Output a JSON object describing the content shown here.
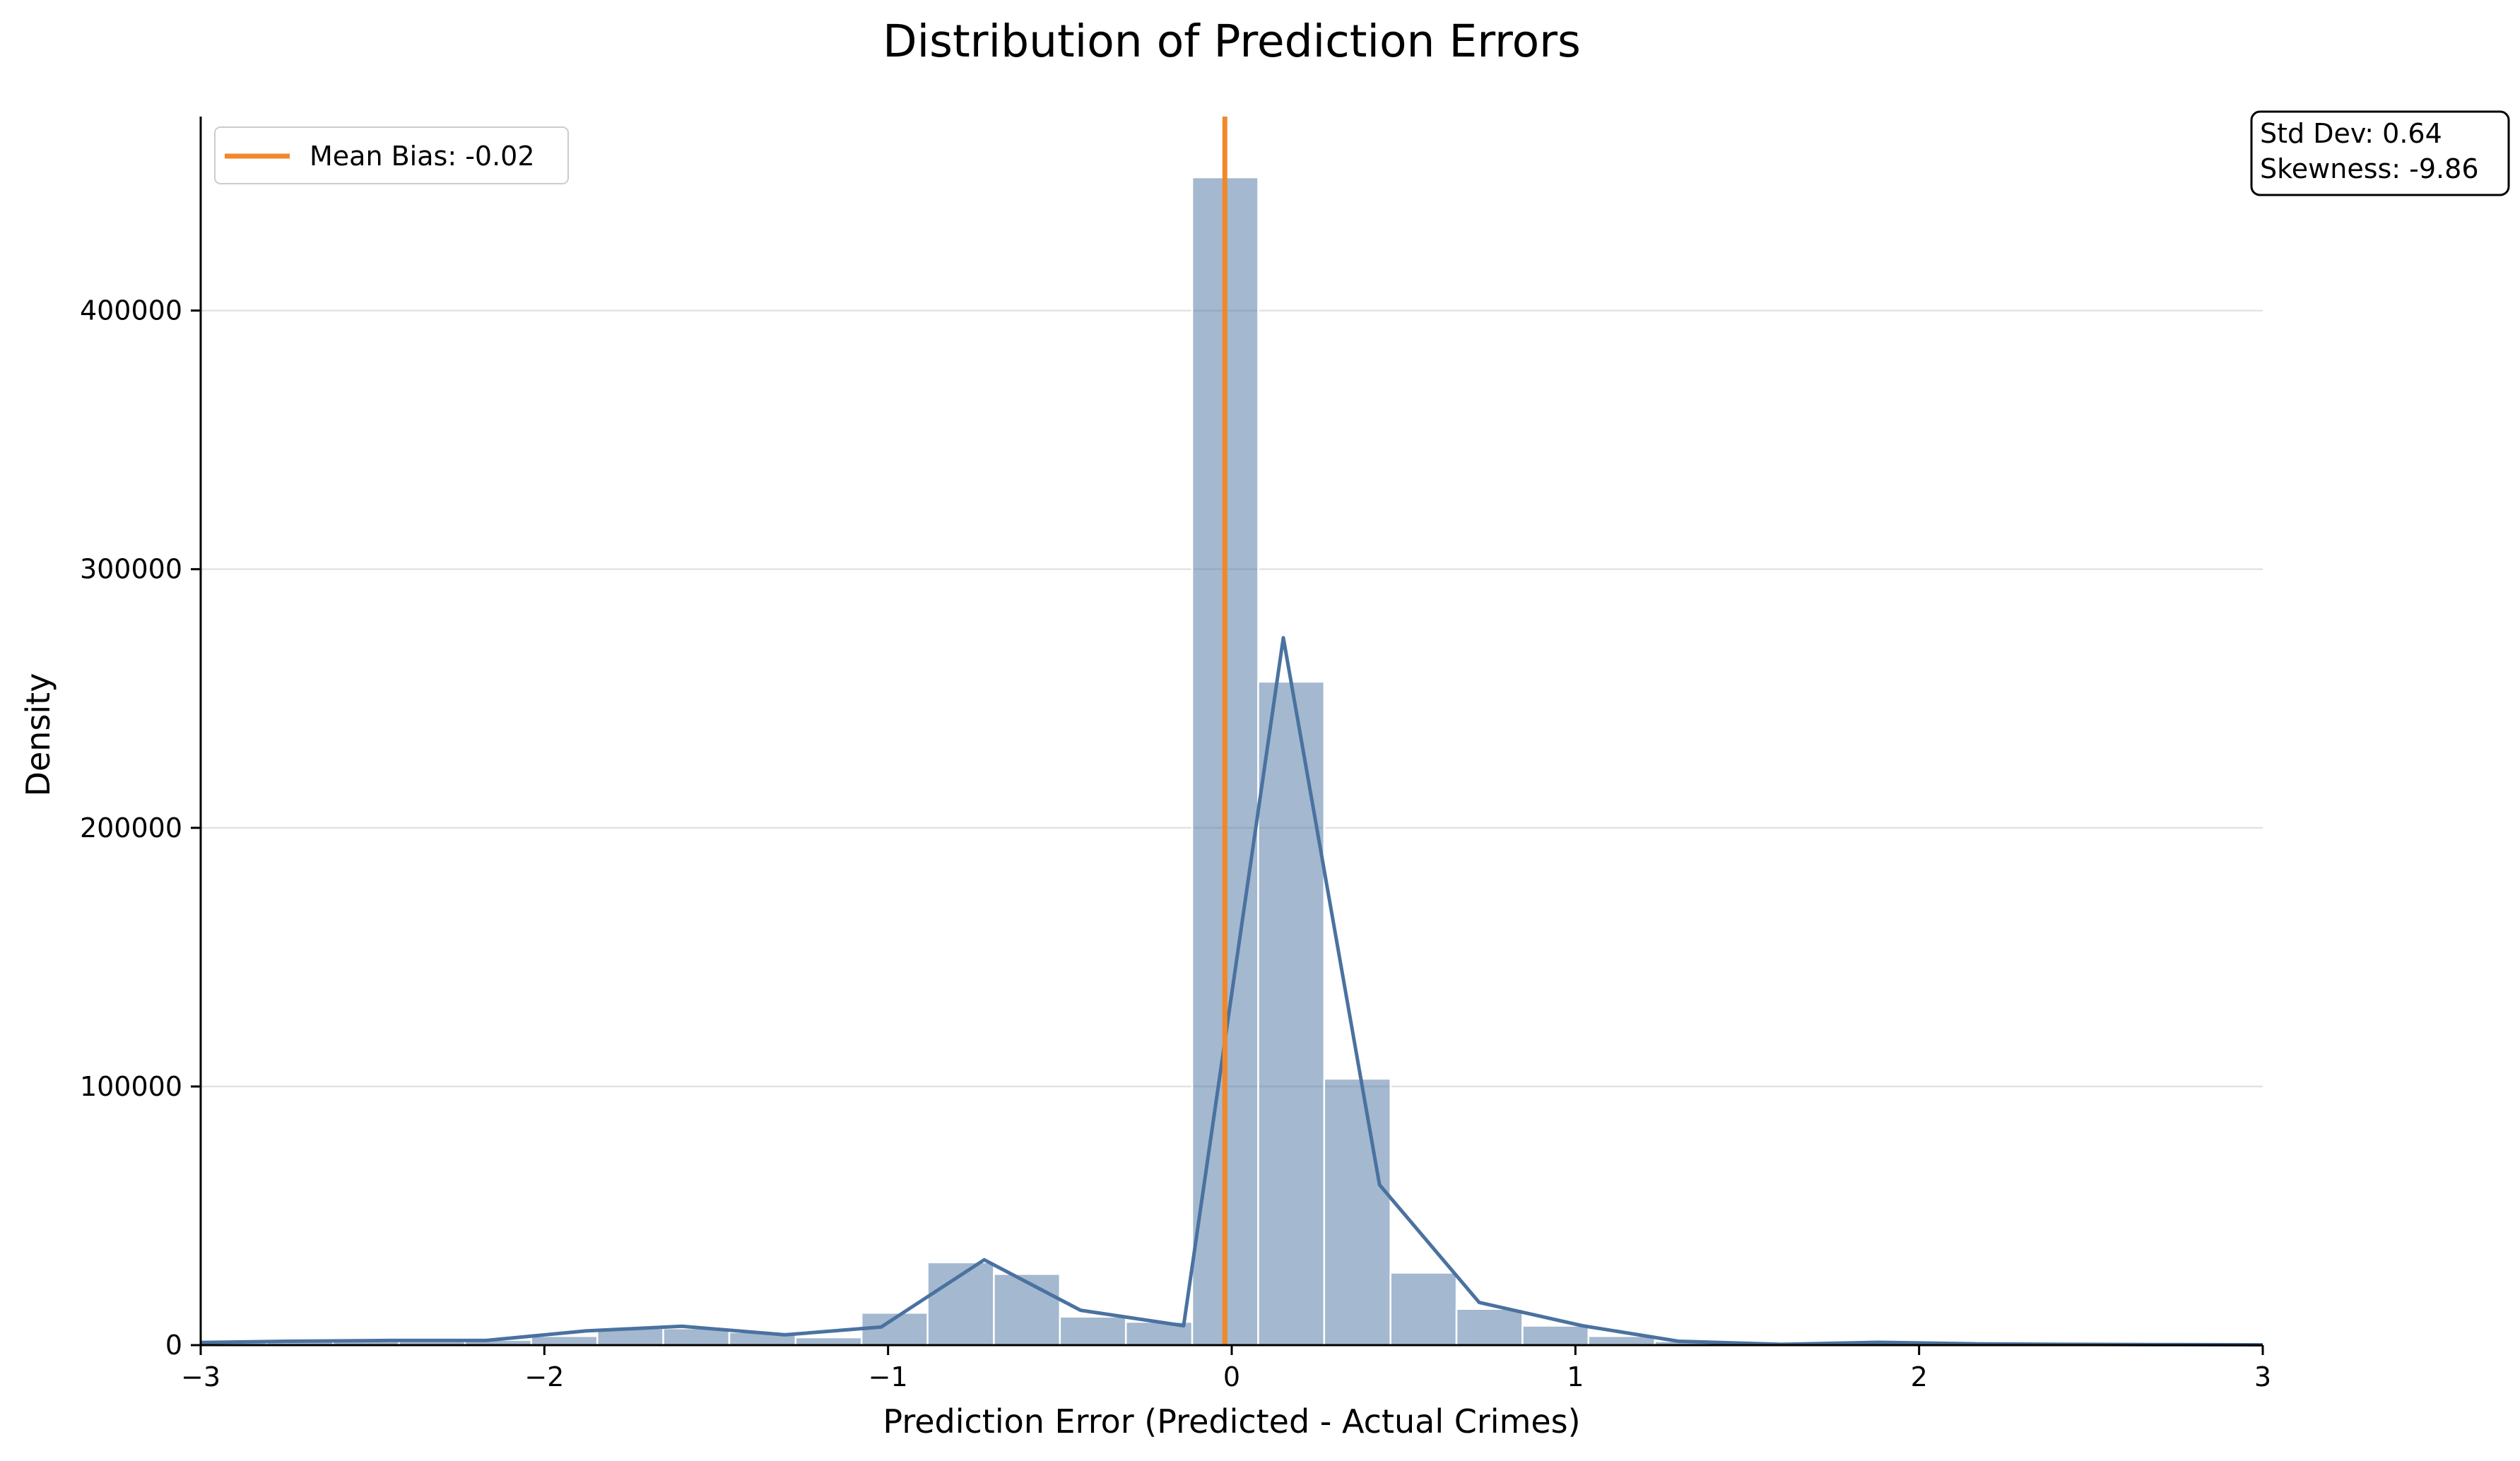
{
  "chart_data": {
    "type": "histogram",
    "title": "Distribution of Prediction Errors",
    "xlabel": "Prediction Error (Predicted - Actual Crimes)",
    "ylabel": "Density",
    "xlim": [
      -3,
      3
    ],
    "ylim": [
      0,
      475000
    ],
    "xticks": [
      -3,
      -2,
      -1,
      0,
      1,
      2,
      3
    ],
    "xtick_labels": [
      "−3",
      "−2",
      "−1",
      "0",
      "1",
      "2",
      "3"
    ],
    "yticks": [
      0,
      100000,
      200000,
      300000,
      400000
    ],
    "ytick_labels": [
      "0",
      "100000",
      "200000",
      "300000",
      "400000"
    ],
    "grid": "horizontal",
    "bar_color": "#4a72a0",
    "bins": [
      {
        "x0": -3.0,
        "x1": -2.808,
        "count": 1000
      },
      {
        "x0": -2.808,
        "x1": -2.615,
        "count": 1500
      },
      {
        "x0": -2.615,
        "x1": -2.423,
        "count": 1500
      },
      {
        "x0": -2.423,
        "x1": -2.231,
        "count": 1500
      },
      {
        "x0": -2.231,
        "x1": -2.038,
        "count": 2000
      },
      {
        "x0": -2.038,
        "x1": -1.846,
        "count": 3500
      },
      {
        "x0": -1.846,
        "x1": -1.654,
        "count": 6500
      },
      {
        "x0": -1.654,
        "x1": -1.462,
        "count": 6500
      },
      {
        "x0": -1.462,
        "x1": -1.269,
        "count": 5000
      },
      {
        "x0": -1.269,
        "x1": -1.077,
        "count": 3000
      },
      {
        "x0": -1.077,
        "x1": -0.885,
        "count": 12500
      },
      {
        "x0": -0.885,
        "x1": -0.692,
        "count": 32000
      },
      {
        "x0": -0.692,
        "x1": -0.5,
        "count": 27500
      },
      {
        "x0": -0.5,
        "x1": -0.308,
        "count": 11000
      },
      {
        "x0": -0.308,
        "x1": -0.115,
        "count": 9000
      },
      {
        "x0": -0.115,
        "x1": 0.077,
        "count": 451500
      },
      {
        "x0": 0.077,
        "x1": 0.269,
        "count": 256500
      },
      {
        "x0": 0.269,
        "x1": 0.462,
        "count": 103000
      },
      {
        "x0": 0.462,
        "x1": 0.654,
        "count": 28000
      },
      {
        "x0": 0.654,
        "x1": 0.846,
        "count": 14000
      },
      {
        "x0": 0.846,
        "x1": 1.038,
        "count": 7500
      },
      {
        "x0": 1.038,
        "x1": 1.231,
        "count": 3500
      },
      {
        "x0": 1.231,
        "x1": 1.423,
        "count": 1500
      },
      {
        "x0": 1.423,
        "x1": 1.615,
        "count": 500
      },
      {
        "x0": 1.615,
        "x1": 1.808,
        "count": 300
      },
      {
        "x0": 1.808,
        "x1": 2.0,
        "count": 800
      },
      {
        "x0": 2.0,
        "x1": 2.192,
        "count": 500
      },
      {
        "x0": 2.192,
        "x1": 2.385,
        "count": 300
      },
      {
        "x0": 2.385,
        "x1": 2.577,
        "count": 200
      },
      {
        "x0": 2.577,
        "x1": 2.769,
        "count": 150
      },
      {
        "x0": 2.769,
        "x1": 3.0,
        "count": 100
      }
    ],
    "density_curve": {
      "color": "#4a72a0",
      "x": [
        -3.0,
        -2.75,
        -2.45,
        -2.17,
        -1.88,
        -1.6,
        -1.3,
        -1.02,
        -0.72,
        -0.44,
        -0.14,
        0.15,
        0.43,
        0.72,
        1.02,
        1.3,
        1.6,
        1.88,
        2.17,
        2.45,
        2.75,
        3.0
      ],
      "y": [
        1000,
        1500,
        1800,
        1800,
        5500,
        7300,
        4000,
        7000,
        33000,
        13500,
        7500,
        273500,
        62000,
        16500,
        7500,
        1500,
        300,
        1100,
        500,
        300,
        200,
        100
      ]
    },
    "mean_bias_line": {
      "x": -0.02,
      "color": "#f0882a"
    },
    "legend": {
      "position": "top-left",
      "entries": [
        {
          "label": "Mean Bias: -0.02",
          "color": "#f0882a"
        }
      ]
    },
    "stats_box": {
      "position": "top-right",
      "lines": [
        "Std Dev: 0.64",
        "Skewness: -9.86"
      ]
    }
  }
}
